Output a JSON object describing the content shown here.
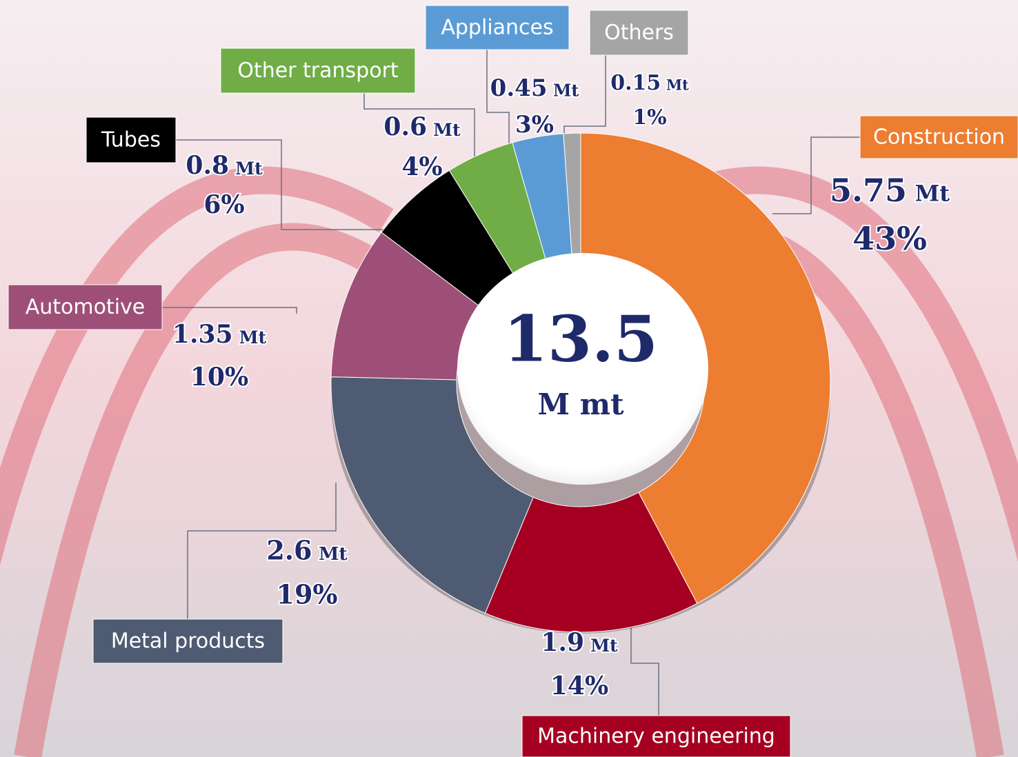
{
  "chart_data": {
    "type": "donut",
    "total": 13.5,
    "total_unit": "M mt",
    "unit": "Mt",
    "categories": [
      "Construction",
      "Machinery engineering",
      "Metal products",
      "Automotive",
      "Tubes",
      "Other transport",
      "Appliances",
      "Others"
    ],
    "values": [
      5.75,
      1.9,
      2.6,
      1.35,
      0.8,
      0.6,
      0.45,
      0.15
    ],
    "share_labels": [
      "43%",
      "14%",
      "19%",
      "10%",
      "6%",
      "4%",
      "3%",
      "1%"
    ],
    "colors": [
      "#ed7d31",
      "#a50021",
      "#4f5b72",
      "#9e4f78",
      "#000000",
      "#70ad47",
      "#5b9bd5",
      "#a5a5a5"
    ]
  }
}
